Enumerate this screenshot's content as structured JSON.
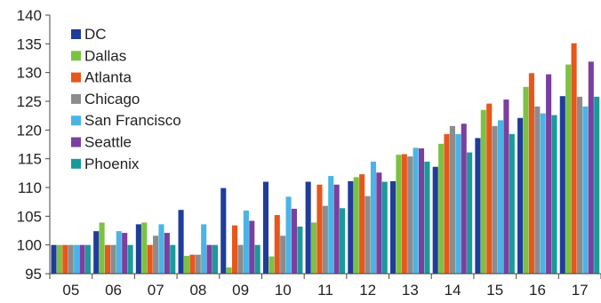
{
  "chart_data": {
    "type": "bar",
    "categories": [
      "05",
      "06",
      "07",
      "08",
      "09",
      "10",
      "11",
      "12",
      "13",
      "14",
      "15",
      "16",
      "17"
    ],
    "ylim": [
      95,
      140
    ],
    "yticks": [
      95,
      100,
      105,
      110,
      115,
      120,
      125,
      130,
      135,
      140
    ],
    "grid": false,
    "legend_position": "top-left",
    "series": [
      {
        "name": "DC",
        "color": "#1f3d99",
        "values": [
          100,
          102.4,
          103.6,
          106.1,
          109.9,
          111.0,
          111.0,
          111.1,
          111.1,
          113.6,
          118.6,
          122.1,
          125.9
        ]
      },
      {
        "name": "Dallas",
        "color": "#7cc242",
        "values": [
          100,
          103.9,
          103.9,
          98.1,
          96.1,
          98.0,
          103.9,
          111.8,
          115.7,
          117.6,
          123.5,
          127.5,
          131.4
        ]
      },
      {
        "name": "Atlanta",
        "color": "#e8561c",
        "values": [
          100,
          100.0,
          100.0,
          98.3,
          103.4,
          105.2,
          110.5,
          112.3,
          115.8,
          119.3,
          124.6,
          129.9,
          135.1
        ]
      },
      {
        "name": "Chicago",
        "color": "#8c8c8c",
        "values": [
          100,
          100.0,
          101.6,
          98.3,
          100.0,
          101.6,
          106.8,
          108.5,
          115.4,
          120.7,
          120.7,
          124.1,
          125.8
        ]
      },
      {
        "name": "San Francisco",
        "color": "#4ab4e6",
        "values": [
          100,
          102.4,
          103.6,
          103.6,
          106.0,
          108.4,
          112.0,
          114.5,
          116.9,
          119.3,
          121.7,
          122.9,
          124.1
        ]
      },
      {
        "name": "Seattle",
        "color": "#7b3fa0",
        "values": [
          100,
          102.1,
          102.1,
          100.0,
          104.2,
          106.3,
          110.5,
          112.6,
          116.8,
          121.1,
          125.3,
          129.7,
          131.9
        ]
      },
      {
        "name": "Phoenix",
        "color": "#1a9a9a",
        "values": [
          100,
          100.0,
          100.0,
          100.0,
          100.0,
          103.2,
          106.4,
          111.0,
          114.5,
          116.1,
          119.3,
          122.6,
          125.8
        ]
      }
    ]
  }
}
